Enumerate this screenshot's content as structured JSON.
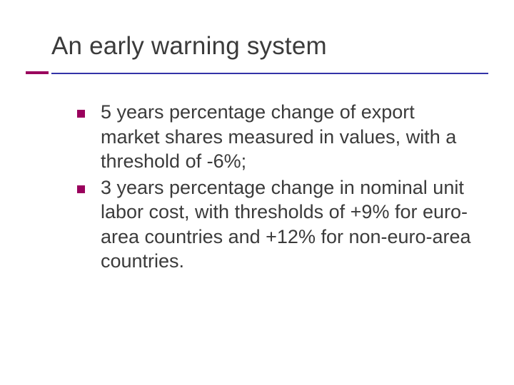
{
  "slide": {
    "title": "An early warning system",
    "bullets": [
      {
        "text": " 5 years percentage change of export market shares measured in values, with a threshold of -6%;"
      },
      {
        "text": "3 years percentage change in nominal unit labor cost, with thresholds of +9% for euro-area countries and +12% for non-euro-area countries."
      }
    ]
  },
  "style": {
    "background_color": "#ffffff",
    "title_color": "#3b3b3b",
    "title_fontsize": 35,
    "body_color": "#3b3b3b",
    "body_fontsize": 27,
    "bullet_marker_color": "#9a005d",
    "bullet_marker_size": 11,
    "underline_short_color": "#9a005d",
    "underline_long_color": "#3333a8",
    "font_family": "Verdana"
  }
}
